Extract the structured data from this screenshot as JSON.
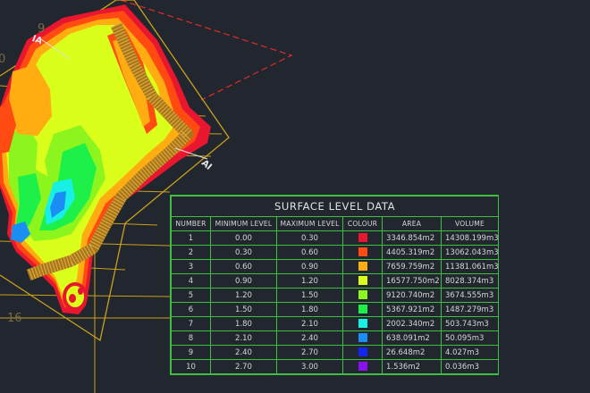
{
  "drawing": {
    "section_labels": {
      "left": "IA",
      "right": "AI"
    },
    "markers": {
      "top": "9",
      "left": "0",
      "bottom": "16"
    }
  },
  "legend": {
    "title": "SURFACE LEVEL DATA",
    "headers": [
      "NUMBER",
      "MINIMUM LEVEL",
      "MAXIMUM LEVEL",
      "COLOUR",
      "AREA",
      "VOLUME"
    ],
    "rows": [
      {
        "number": "1",
        "min": "0.00",
        "max": "0.30",
        "color": "#e8162f",
        "area": "3346.854m2",
        "volume": "14308.199m3"
      },
      {
        "number": "2",
        "min": "0.30",
        "max": "0.60",
        "color": "#ff4a12",
        "area": "4405.319m2",
        "volume": "13062.043m3"
      },
      {
        "number": "3",
        "min": "0.60",
        "max": "0.90",
        "color": "#ffad10",
        "area": "7659.759m2",
        "volume": "11381.061m3"
      },
      {
        "number": "4",
        "min": "0.90",
        "max": "1.20",
        "color": "#d9ff1a",
        "area": "16577.750m2",
        "volume": "8028.374m3"
      },
      {
        "number": "5",
        "min": "1.20",
        "max": "1.50",
        "color": "#8cf51e",
        "area": "9120.740m2",
        "volume": "3674.555m3"
      },
      {
        "number": "6",
        "min": "1.50",
        "max": "1.80",
        "color": "#1df048",
        "area": "5367.921m2",
        "volume": "1487.279m3"
      },
      {
        "number": "7",
        "min": "1.80",
        "max": "2.10",
        "color": "#18f0e6",
        "area": "2002.340m2",
        "volume": "503.743m3"
      },
      {
        "number": "8",
        "min": "2.10",
        "max": "2.40",
        "color": "#1a8ef5",
        "area": "638.091m2",
        "volume": "50.095m3"
      },
      {
        "number": "9",
        "min": "2.40",
        "max": "2.70",
        "color": "#1226f0",
        "area": "26.648m2",
        "volume": "4.027m3"
      },
      {
        "number": "10",
        "min": "2.70",
        "max": "3.00",
        "color": "#8a12f0",
        "area": "1.536m2",
        "volume": "0.036m3"
      }
    ]
  }
}
